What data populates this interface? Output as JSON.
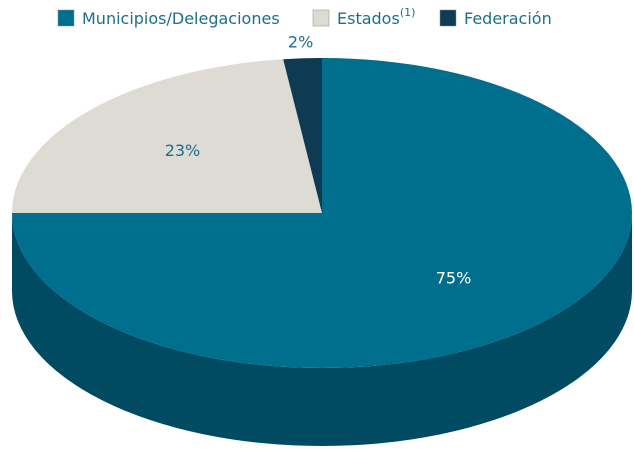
{
  "chart_data": {
    "type": "pie3d",
    "categories": [
      "Municipios/Delegaciones",
      "Estados",
      "Federación"
    ],
    "category_notes": [
      null,
      "(1)",
      null
    ],
    "values": [
      75,
      23,
      2
    ],
    "value_labels": [
      "75%",
      "23%",
      "2%"
    ],
    "colors": [
      "#006f8e",
      "#dedad4",
      "#0e3b52"
    ],
    "side_colors": [
      "#004a62",
      "#bcb8b1",
      "#072838"
    ],
    "label_colors": [
      "#ffffff",
      "#1c6f8c",
      "#1c6f8c"
    ],
    "legend": "top"
  }
}
